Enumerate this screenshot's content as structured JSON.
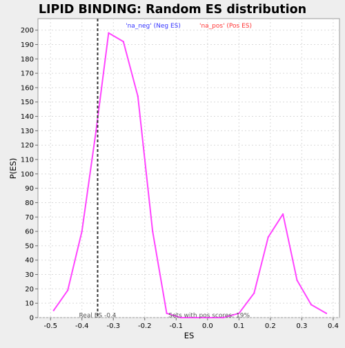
{
  "chart_data": {
    "type": "line",
    "title": "LIPID BINDING: Random ES distribution",
    "xlabel": "ES",
    "ylabel": "P(ES)",
    "xlim": [
      -0.54,
      0.42
    ],
    "ylim": [
      0,
      208
    ],
    "x_ticks": [
      -0.5,
      -0.4,
      -0.3,
      -0.2,
      -0.1,
      0.0,
      0.1,
      0.2,
      0.3,
      0.4
    ],
    "x_tick_labels": [
      "-0.5",
      "-0.4",
      "-0.3",
      "-0.2",
      "-0.1",
      "0.0",
      "0.1",
      "0.2",
      "0.3",
      "0.4"
    ],
    "y_ticks": [
      0,
      10,
      20,
      30,
      40,
      50,
      60,
      70,
      80,
      90,
      100,
      110,
      120,
      130,
      140,
      150,
      160,
      170,
      180,
      190,
      200
    ],
    "grid": true,
    "legend": [
      {
        "label": "'na_neg' (Neg ES)",
        "color": "#3333ff"
      },
      {
        "label": "'na_pos' (Pos ES)",
        "color": "#ff3333"
      }
    ],
    "series": [
      {
        "color": "#ff44ff",
        "x": [
          -0.49,
          -0.445,
          -0.4,
          -0.355,
          -0.315,
          -0.268,
          -0.222,
          -0.175,
          -0.13,
          -0.085,
          -0.04,
          0.005,
          0.05,
          0.1,
          0.148,
          0.193,
          0.24,
          0.285,
          0.33,
          0.378
        ],
        "y": [
          5,
          19,
          60,
          130,
          198,
          192,
          154,
          60,
          3,
          0,
          0,
          0,
          0,
          3,
          17,
          56,
          72,
          26,
          9,
          3
        ]
      }
    ],
    "real_es": {
      "x": -0.35,
      "label": "Real ES -0.4"
    },
    "annotation": "Sets with pos scores: 19%"
  }
}
